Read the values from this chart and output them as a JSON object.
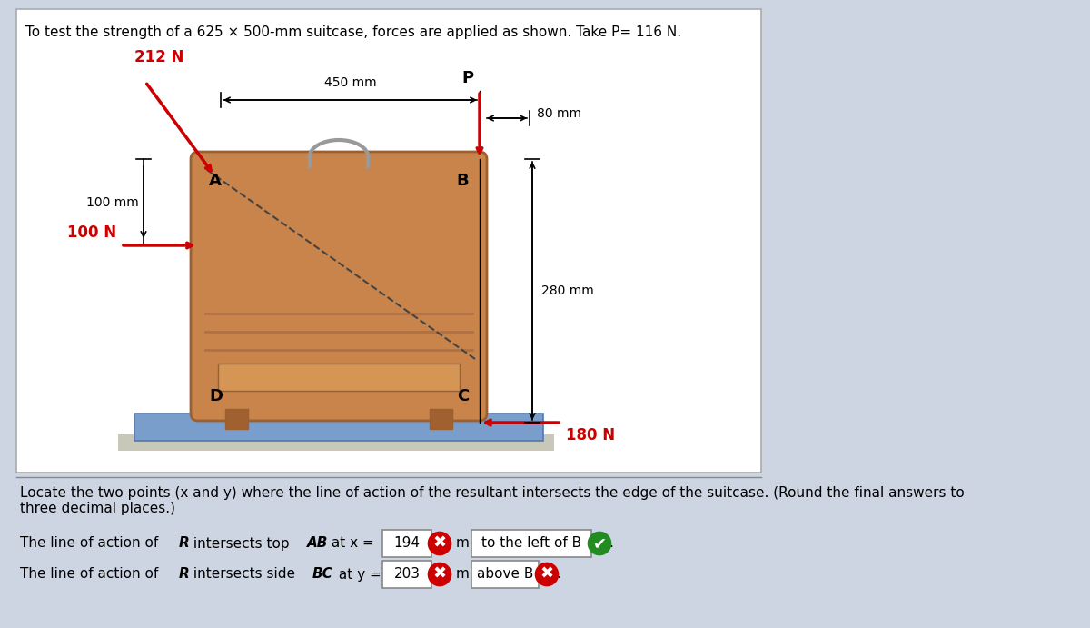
{
  "title": "To test the strength of a 625 × 500-mm suitcase, forces are applied as shown. Take P= 116 N.",
  "bg_color": "#cdd4e2",
  "white_box_color": "#ffffff",
  "suitcase_color": "#c8844a",
  "suitcase_edge": "#9a6030",
  "handle_color": "#999999",
  "base_color": "#7a9ecc",
  "base_edge": "#5577aa",
  "ground_color": "#c8c8b8",
  "panel_color": "#d49555",
  "line_color": "#b07040",
  "bottom_text": "Locate the two points (x and y) where the line of action of the resultant intersects the edge of the suitcase. (Round the final answers to\nthree decimal places.)",
  "line1_value": "194",
  "line1_end": "to the left of B",
  "line2_value": "203",
  "line2_end": "above B",
  "force_212": "212 N",
  "force_100N": "100 N",
  "force_180N": "180 N",
  "label_P": "P",
  "label_80mm": "80 mm",
  "label_100mm": "100 mm",
  "label_450mm": "450 mm",
  "label_280mm": "280 mm",
  "label_A": "A",
  "label_B": "B",
  "label_C": "C",
  "label_D": "D",
  "red_color": "#cc0000",
  "green_check_color": "#228B22",
  "red_x_color": "#cc0000",
  "dashed_color": "#444444"
}
